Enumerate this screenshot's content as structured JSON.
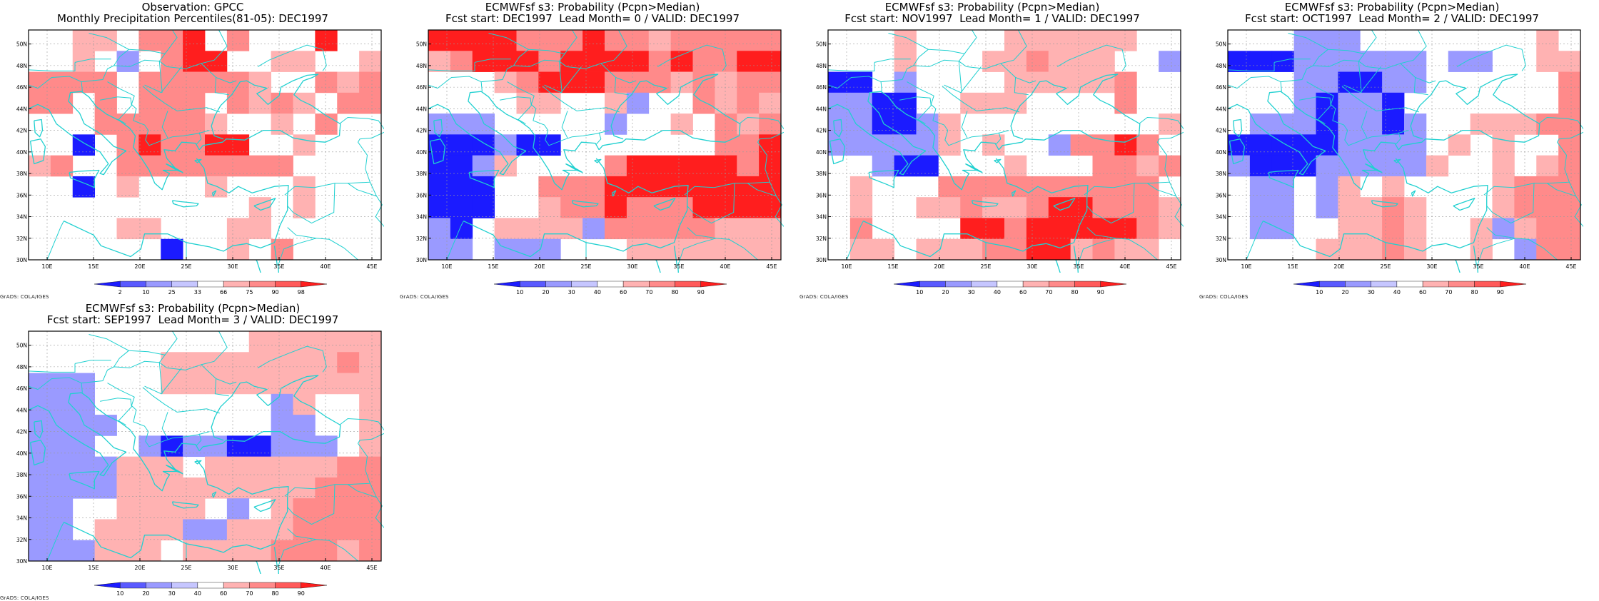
{
  "credit": "GrADS: COLA/IGES",
  "lon_labels": [
    "10E",
    "15E",
    "20E",
    "25E",
    "30E",
    "35E",
    "40E",
    "45E"
  ],
  "lat_labels": [
    "30N",
    "32N",
    "34N",
    "36N",
    "38N",
    "40N",
    "42N",
    "44N",
    "46N",
    "48N",
    "50N"
  ],
  "colors": {
    "blue_dark": "#1b1bff",
    "blue_mid": "#5a5aff",
    "blue_light": "#9a9aff",
    "blue_pale": "#c6c6ff",
    "white": "#ffffff",
    "red_pale": "#ffb2b2",
    "red_light": "#ff8a8a",
    "red_mid": "#ff5a5a",
    "red_dark": "#ff1e1e",
    "coast": "#20d0d0"
  },
  "panels": [
    {
      "title_line1": "Observation: GPCC",
      "title_line2": "Monthly Precipitation Percentiles(81-05): DEC1997",
      "colorbar_labels": [
        "2",
        "10",
        "25",
        "33",
        "66",
        "75",
        "90",
        "98"
      ],
      "grid": [
        "..pp.mmd.m...d..",
        "..p.b.mdd..pp..p",
        "mmmm.mmmmmp..mpm",
        "mm.m.mmm.mpmp.mm",
        "...mmmmmp..p.m..",
        "..B.mdmmdd..p...",
        "pm..mmmmmmmm....",
        "..B.p...p...p...",
        "..........p.p...",
        "....pp...pp.....",
        "......B..p.m...."
      ]
    },
    {
      "title_line1": "ECMWFsf s3: Probability (Pcpn>Median)",
      "title_line2": "Fcst start: DEC1997  Lead Month= 0 / VALID: DEC1997",
      "colorbar_labels": [
        "10",
        "20",
        "30",
        "40",
        "60",
        "70",
        "80",
        "90"
      ],
      "grid": [
        "ddddmmmdmmpmmmmm",
        "pmdddmddddmdmmdd",
        "...pmdddmmmpmpmm",
        "....pp..pb..mpmp",
        "bbb.....b..p.mpm",
        "BBBbBB.......mmd",
        "BBbp....mdddddmd",
        "BBB..mmmdddddddd",
        "BBB..pmmdmmmdddd",
        "bB.ppppbmmmmmppp",
        "bb.bbb...ppppppp"
      ]
    },
    {
      "title_line1": "ECMWFsf s3: Probability (Pcpn>Median)",
      "title_line2": "Fcst start: NOV1997  Lead Month= 1 / VALID: DEC1997",
      "colorbar_labels": [
        "10",
        "20",
        "30",
        "40",
        "60",
        "70",
        "80",
        "90"
      ],
      "grid": [
        "...p....pppppp..",
        "...p...ppmppp..b",
        "BB.b....pppppm..",
        "bbBB..ppp....m..",
        "bbBBbp.........p",
        "bbbbbp.p..bmmdm.",
        "..bBB...p...mmpm",
        ".p...mmmmmmmmmm.",
        ".p..ppmppmddmmmp",
        ".m....ddmdddddmp",
        ".pp.pppmmddpmpp."
      ]
    },
    {
      "title_line1": "ECMWFsf s3: Probability (Pcpn>Median)",
      "title_line2": "Fcst start: OCT1997  Lead Month= 2 / VALID: DEC1997",
      "colorbar_labels": [
        "10",
        "20",
        "30",
        "40",
        "60",
        "70",
        "80",
        "90"
      ],
      "grid": [
        "...bbb........p.",
        "BBBbbbbbb.bb..pp",
        "...bbBBbb......m",
        "...bBbbB.......m",
        ".bbbBbbBb..pppmm",
        "BBBBBbbbb.p.p..m",
        "bBBBbbbbbp..p.pm",
        ".bb.bp.p....pmmm",
        ".bb.bppmp...pmmm",
        ".bb..ppmp..pbpmm",
        "....pppmp..p.bmm"
      ]
    },
    {
      "title_line1": "ECMWFsf s3: Probability (Pcpn>Median)",
      "title_line2": "Fcst start: SEP1997  Lead Month= 3 / VALID: DEC1997",
      "colorbar_labels": [
        "10",
        "20",
        "30",
        "40",
        "60",
        "70",
        "80",
        "90"
      ],
      "grid": [
        "..........pppppp",
        "......ppppppppmp",
        "bbb...pppppppppp",
        "bbb........bp..p",
        "bbbb.......bb..p",
        "bbb..bBbbBBbbb.p",
        "bbbbppp.ppppppmm",
        "bbbbpppppppppmmm",
        "bb..pppp.b.pmmmm",
        "bb.ppppbbpppmmmm",
        "bbbppp.ppppmmmpm"
      ]
    }
  ]
}
